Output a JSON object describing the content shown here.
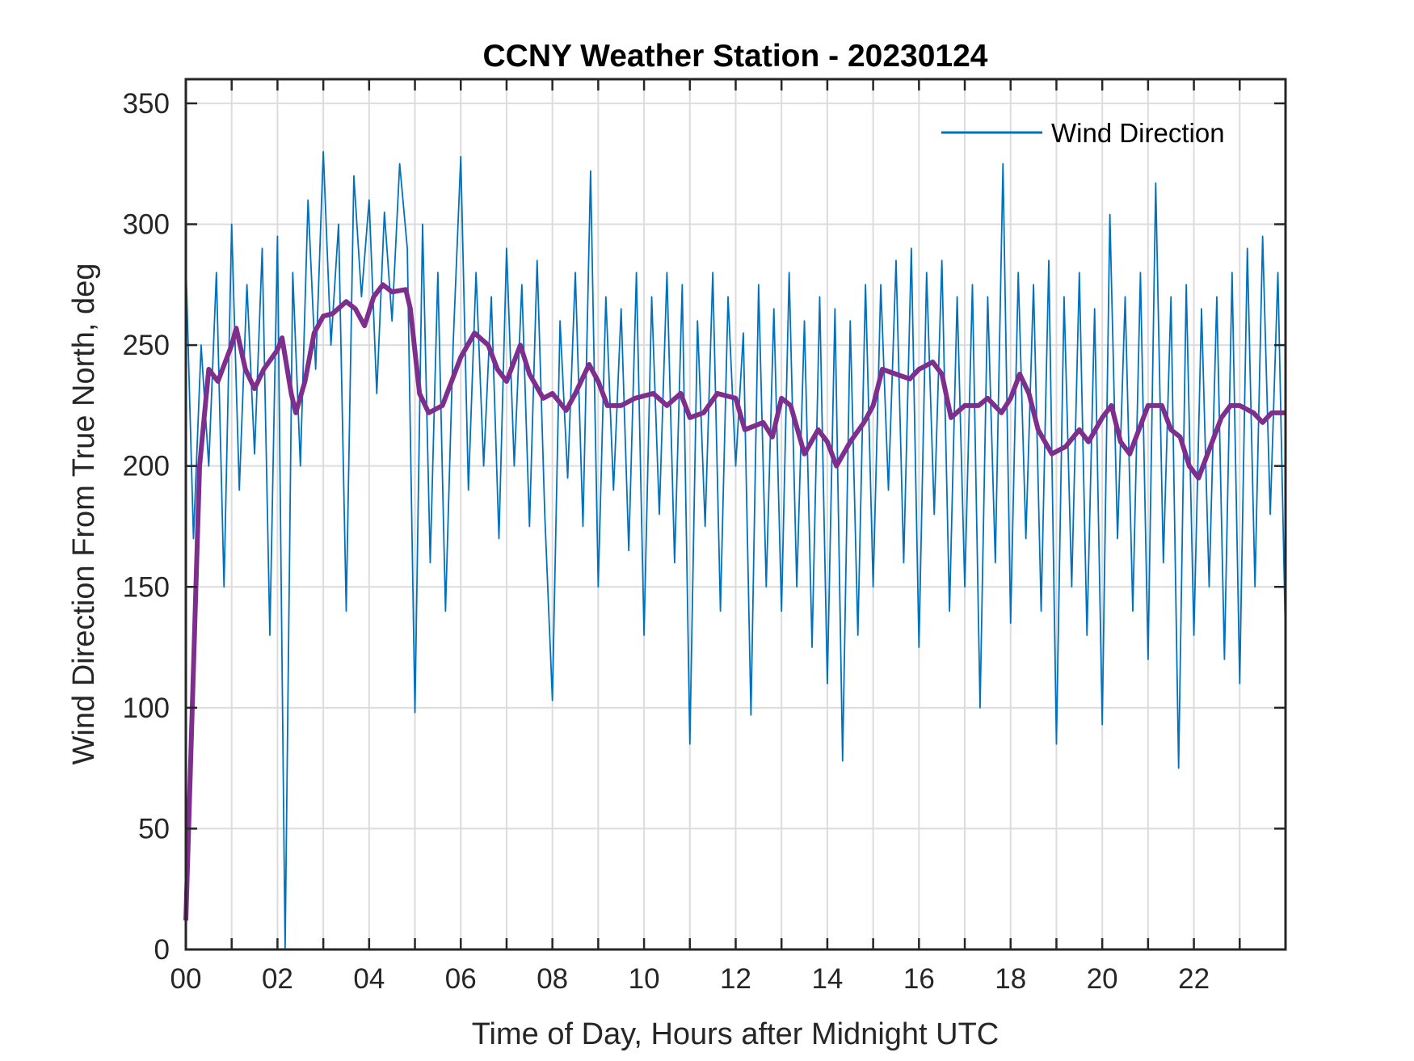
{
  "chart_data": {
    "type": "line",
    "title": "CCNY Weather Station - 20230124",
    "xlabel": "Time of Day, Hours after Midnight UTC",
    "ylabel": "Wind Direction From True North, deg",
    "xlim": [
      0,
      24
    ],
    "ylim": [
      0,
      360
    ],
    "xticks": [
      0,
      1,
      2,
      3,
      4,
      5,
      6,
      7,
      8,
      9,
      10,
      11,
      12,
      13,
      14,
      15,
      16,
      17,
      18,
      19,
      20,
      21,
      22,
      23
    ],
    "xtick_labels": [
      "00",
      "",
      "02",
      "",
      "04",
      "",
      "06",
      "",
      "08",
      "",
      "10",
      "",
      "12",
      "",
      "14",
      "",
      "16",
      "",
      "18",
      "",
      "20",
      "",
      "22",
      ""
    ],
    "yticks": [
      0,
      50,
      100,
      150,
      200,
      250,
      300,
      350
    ],
    "ytick_labels": [
      "0",
      "50",
      "100",
      "150",
      "200",
      "250",
      "300",
      "350"
    ],
    "grid": true,
    "legend_position": "top-right",
    "series": [
      {
        "name": "Wind Direction",
        "color": "#0072BD",
        "x_step_hours": 0.1667,
        "values": [
          285,
          170,
          250,
          200,
          280,
          150,
          300,
          190,
          275,
          205,
          290,
          130,
          295,
          0,
          280,
          200,
          310,
          240,
          330,
          250,
          300,
          140,
          320,
          270,
          310,
          230,
          305,
          260,
          325,
          290,
          98,
          300,
          160,
          280,
          140,
          250,
          328,
          190,
          280,
          200,
          270,
          170,
          290,
          200,
          275,
          175,
          285,
          180,
          103,
          260,
          195,
          280,
          175,
          322,
          150,
          270,
          190,
          265,
          165,
          280,
          130,
          270,
          180,
          280,
          160,
          275,
          85,
          260,
          175,
          280,
          140,
          270,
          200,
          255,
          97,
          275,
          150,
          265,
          140,
          280,
          150,
          260,
          125,
          270,
          110,
          265,
          78,
          260,
          130,
          275,
          150,
          275,
          190,
          285,
          160,
          290,
          125,
          280,
          180,
          285,
          140,
          270,
          150,
          275,
          100,
          270,
          160,
          325,
          135,
          280,
          170,
          275,
          140,
          285,
          85,
          270,
          150,
          280,
          130,
          265,
          93,
          304,
          170,
          270,
          140,
          280,
          120,
          317,
          160,
          270,
          75,
          275,
          130,
          265,
          150,
          270,
          120,
          280,
          110,
          290,
          150,
          295,
          180,
          280,
          127
        ]
      },
      {
        "color": "#7E2F8E",
        "x": [
          0,
          0.3,
          0.5,
          0.7,
          1.0,
          1.1,
          1.3,
          1.5,
          1.7,
          2.0,
          2.1,
          2.3,
          2.4,
          2.6,
          2.8,
          3.0,
          3.2,
          3.5,
          3.7,
          3.9,
          4.1,
          4.3,
          4.5,
          4.8,
          4.9,
          5.1,
          5.3,
          5.6,
          5.8,
          6.0,
          6.3,
          6.6,
          6.8,
          7.0,
          7.3,
          7.5,
          7.8,
          8.0,
          8.3,
          8.5,
          8.8,
          9.0,
          9.2,
          9.5,
          9.8,
          10.2,
          10.5,
          10.8,
          11.0,
          11.3,
          11.6,
          12.0,
          12.2,
          12.6,
          12.8,
          13.0,
          13.2,
          13.5,
          13.8,
          14.0,
          14.2,
          14.5,
          14.8,
          15.0,
          15.2,
          15.5,
          15.8,
          16.0,
          16.3,
          16.5,
          16.7,
          17.0,
          17.3,
          17.5,
          17.8,
          18.0,
          18.2,
          18.4,
          18.6,
          18.9,
          19.2,
          19.5,
          19.7,
          20.0,
          20.2,
          20.4,
          20.6,
          20.8,
          21.0,
          21.3,
          21.5,
          21.7,
          21.9,
          22.1,
          22.3,
          22.6,
          22.8,
          23.0,
          23.3,
          23.5,
          23.7,
          24.0
        ],
        "values": [
          12,
          200,
          240,
          235,
          250,
          257,
          240,
          232,
          240,
          248,
          253,
          230,
          222,
          235,
          255,
          262,
          263,
          268,
          265,
          258,
          270,
          275,
          272,
          273,
          265,
          230,
          222,
          225,
          235,
          245,
          255,
          250,
          240,
          235,
          250,
          238,
          228,
          230,
          223,
          230,
          242,
          235,
          225,
          225,
          228,
          230,
          225,
          230,
          220,
          222,
          230,
          228,
          215,
          218,
          212,
          228,
          225,
          205,
          215,
          210,
          200,
          210,
          218,
          225,
          240,
          238,
          236,
          240,
          243,
          238,
          220,
          225,
          225,
          228,
          222,
          228,
          238,
          230,
          215,
          205,
          208,
          215,
          210,
          220,
          225,
          210,
          205,
          215,
          225,
          225,
          215,
          212,
          200,
          195,
          205,
          220,
          225,
          225,
          222,
          218,
          222,
          222
        ]
      }
    ]
  }
}
